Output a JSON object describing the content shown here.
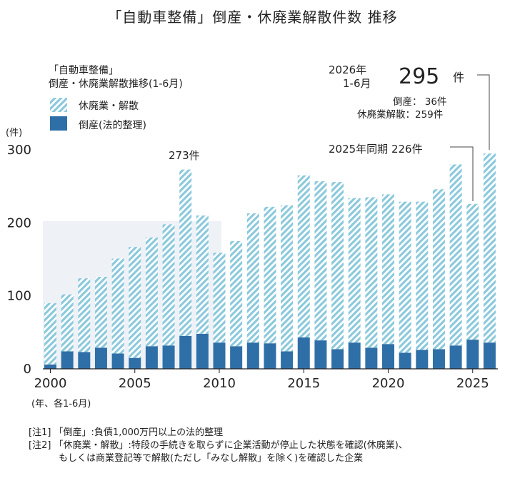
{
  "title": "「自動車整備」倒産・休廃業解散件数 推移",
  "legend": {
    "title_line1": "「自動車整備」",
    "title_line2": "倒産・休廃業解散推移(1-6月)",
    "items": [
      "休廃業・解散",
      "倒産(法的整理)"
    ]
  },
  "yunit": "(件)",
  "xnote": "(年、各1-6月)",
  "annotations": {
    "peak": "273件",
    "latest_year": "2026年",
    "latest_period": "1-6月",
    "latest_total": "295",
    "latest_unit": "件",
    "latest_bankruptcy": "倒産： 36件",
    "latest_closure": "休廃業解散：259件",
    "prev": "2025年同期  226件"
  },
  "notes": [
    "[注1] 「倒産」:負債1,000万円以上の法的整理",
    "[注2] 「休廃業・解散」:特段の手続きを取らずに企業活動が停止した状態を確認(休廃業)、",
    "もしくは商業登記等で解散(ただし「みなし解散」を除く)を確認した企業"
  ],
  "colors": {
    "bankruptcy": "#2f6fa7",
    "closure_a": "#8cc9dc",
    "closure_b": "#ffffff"
  },
  "chart_data": {
    "type": "bar",
    "stacked": true,
    "categories": [
      "2000",
      "2001",
      "2002",
      "2003",
      "2004",
      "2005",
      "2006",
      "2007",
      "2008",
      "2009",
      "2010",
      "2011",
      "2012",
      "2013",
      "2014",
      "2015",
      "2016",
      "2017",
      "2018",
      "2019",
      "2020",
      "2021",
      "2022",
      "2023",
      "2024",
      "2025",
      "2026"
    ],
    "series": [
      {
        "name": "倒産(法的整理)",
        "values": [
          6,
          24,
          23,
          29,
          21,
          15,
          31,
          32,
          45,
          48,
          36,
          31,
          36,
          35,
          24,
          43,
          39,
          27,
          36,
          29,
          34,
          22,
          26,
          27,
          32,
          40,
          36
        ]
      },
      {
        "name": "休廃業・解散",
        "values": [
          84,
          78,
          101,
          97,
          130,
          152,
          149,
          166,
          228,
          162,
          123,
          144,
          177,
          187,
          200,
          222,
          218,
          229,
          198,
          206,
          205,
          207,
          203,
          219,
          248,
          186,
          259
        ]
      }
    ],
    "ylim": [
      0,
      300
    ],
    "yticks": [
      0,
      100,
      200,
      300
    ],
    "xticks": [
      "2000",
      "2005",
      "2010",
      "2015",
      "2020",
      "2025"
    ]
  }
}
